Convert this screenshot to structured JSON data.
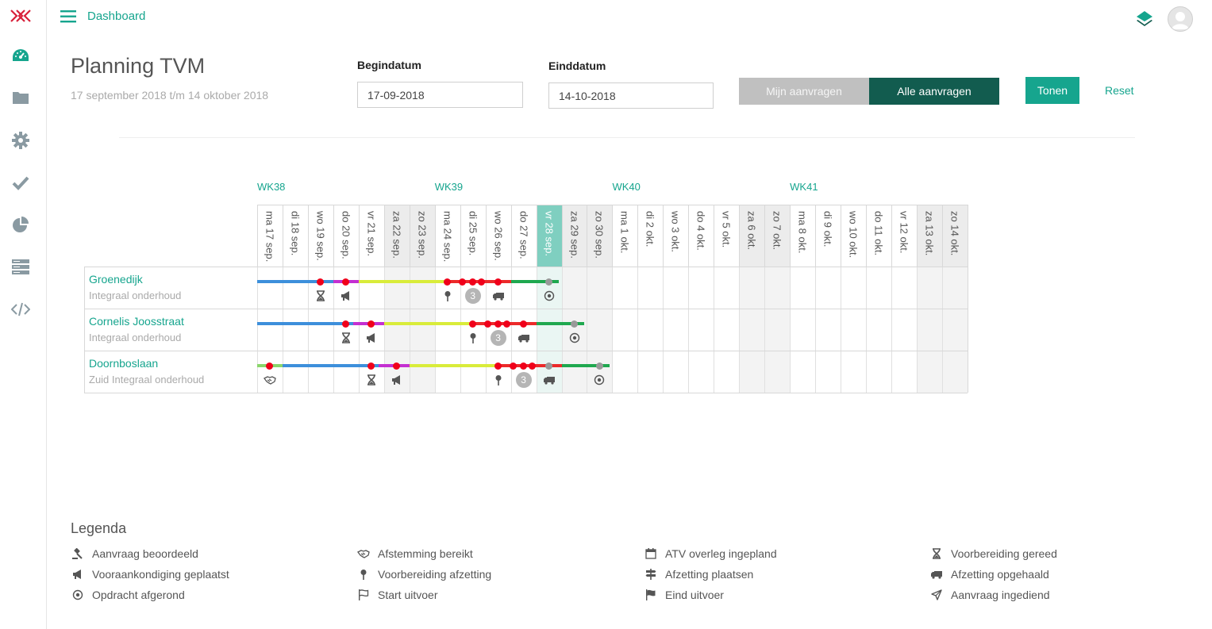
{
  "header": {
    "title": "Dashboard"
  },
  "sidebar": {
    "items": [
      "dashboard",
      "folder",
      "settings",
      "check",
      "pie-chart",
      "server",
      "code"
    ]
  },
  "page": {
    "title": "Planning TVM",
    "subtitle": "17 september 2018 t/m 14 oktober 2018"
  },
  "filters": {
    "start_label": "Begindatum",
    "start_value": "17-09-2018",
    "end_label": "Einddatum",
    "end_value": "14-10-2018",
    "mine_label": "Mijn aanvragen",
    "all_label": "Alle aanvragen",
    "show_label": "Tonen",
    "reset_label": "Reset"
  },
  "weeks": [
    {
      "label": "WK38",
      "start": 0
    },
    {
      "label": "WK39",
      "start": 7
    },
    {
      "label": "WK40",
      "start": 14
    },
    {
      "label": "WK41",
      "start": 21
    }
  ],
  "days": [
    {
      "label": "ma 17 sep.",
      "weekend": false
    },
    {
      "label": "di 18 sep.",
      "weekend": false
    },
    {
      "label": "wo 19 sep.",
      "weekend": false
    },
    {
      "label": "do 20 sep.",
      "weekend": false
    },
    {
      "label": "vr 21 sep.",
      "weekend": false
    },
    {
      "label": "za 22 sep.",
      "weekend": true
    },
    {
      "label": "zo 23 sep.",
      "weekend": true
    },
    {
      "label": "ma 24 sep.",
      "weekend": false
    },
    {
      "label": "di 25 sep.",
      "weekend": false
    },
    {
      "label": "wo 26 sep.",
      "weekend": false
    },
    {
      "label": "do 27 sep.",
      "weekend": false
    },
    {
      "label": "vr 28 sep.",
      "weekend": false,
      "today": true
    },
    {
      "label": "za 29 sep.",
      "weekend": true
    },
    {
      "label": "zo 30 sep.",
      "weekend": true
    },
    {
      "label": "ma 1 okt.",
      "weekend": false
    },
    {
      "label": "di 2 okt.",
      "weekend": false
    },
    {
      "label": "wo 3 okt.",
      "weekend": false
    },
    {
      "label": "do 4 okt.",
      "weekend": false
    },
    {
      "label": "vr 5 okt.",
      "weekend": false
    },
    {
      "label": "za 6 okt.",
      "weekend": true
    },
    {
      "label": "zo 7 okt.",
      "weekend": true
    },
    {
      "label": "ma 8 okt.",
      "weekend": false
    },
    {
      "label": "di 9 okt.",
      "weekend": false
    },
    {
      "label": "wo 10 okt.",
      "weekend": false
    },
    {
      "label": "do 11 okt.",
      "weekend": false
    },
    {
      "label": "vr 12 okt.",
      "weekend": false
    },
    {
      "label": "za 13 okt.",
      "weekend": true
    },
    {
      "label": "zo 14 okt.",
      "weekend": true
    }
  ],
  "phase_colors": {
    "blue": "#3d8fdb",
    "magenta": "#c42fd1",
    "yellow": "#d9ec3a",
    "red": "#ec2a2a",
    "green": "#1fa84f",
    "lightgreen": "#8ad66b",
    "dot_red": "#f0001a",
    "dot_grey": "#999999"
  },
  "projects": [
    {
      "name": "Groenedijk",
      "sub": "Integraal onderhoud",
      "segments": [
        {
          "from": 0,
          "to": 3.8,
          "color": "blue"
        },
        {
          "from": 3.8,
          "to": 4.0,
          "color": "red"
        },
        {
          "from": 3.0,
          "to": 4.0,
          "color": "magenta"
        },
        {
          "from": 4.0,
          "to": 7.6,
          "color": "yellow"
        },
        {
          "from": 7.6,
          "to": 10.0,
          "color": "red"
        },
        {
          "from": 10.0,
          "to": 11.9,
          "color": "green"
        }
      ],
      "dots": [
        {
          "day": 2.5,
          "color": "dot_red"
        },
        {
          "day": 3.5,
          "color": "dot_red"
        },
        {
          "day": 7.5,
          "color": "dot_red"
        },
        {
          "day": 8.1,
          "color": "dot_red"
        },
        {
          "day": 8.5,
          "color": "dot_red"
        },
        {
          "day": 8.85,
          "color": "dot_red"
        },
        {
          "day": 9.5,
          "color": "dot_red"
        },
        {
          "day": 11.5,
          "color": "dot_grey"
        }
      ],
      "icons": [
        {
          "day": 2,
          "icon": "hourglass"
        },
        {
          "day": 3,
          "icon": "megaphone"
        },
        {
          "day": 7,
          "icon": "pin"
        },
        {
          "day": 8,
          "icon": "count",
          "count": "3"
        },
        {
          "day": 9,
          "icon": "truck"
        },
        {
          "day": 11,
          "icon": "target"
        }
      ]
    },
    {
      "name": "Cornelis Joosstraat",
      "sub": "Integraal onderhoud",
      "segments": [
        {
          "from": 0,
          "to": 3.8,
          "color": "blue"
        },
        {
          "from": 3.8,
          "to": 5.0,
          "color": "magenta"
        },
        {
          "from": 5.0,
          "to": 8.6,
          "color": "yellow"
        },
        {
          "from": 8.6,
          "to": 11.0,
          "color": "red"
        },
        {
          "from": 11.0,
          "to": 12.9,
          "color": "green"
        }
      ],
      "dots": [
        {
          "day": 3.5,
          "color": "dot_red"
        },
        {
          "day": 4.5,
          "color": "dot_red"
        },
        {
          "day": 8.5,
          "color": "dot_red"
        },
        {
          "day": 9.1,
          "color": "dot_red"
        },
        {
          "day": 9.5,
          "color": "dot_red"
        },
        {
          "day": 9.85,
          "color": "dot_red"
        },
        {
          "day": 10.5,
          "color": "dot_red"
        },
        {
          "day": 12.5,
          "color": "dot_grey"
        }
      ],
      "icons": [
        {
          "day": 3,
          "icon": "hourglass"
        },
        {
          "day": 4,
          "icon": "megaphone"
        },
        {
          "day": 8,
          "icon": "pin"
        },
        {
          "day": 9,
          "icon": "count",
          "count": "3"
        },
        {
          "day": 10,
          "icon": "truck"
        },
        {
          "day": 12,
          "icon": "target"
        }
      ]
    },
    {
      "name": "Doornboslaan",
      "sub": "Zuid Integraal onderhoud",
      "segments": [
        {
          "from": 0,
          "to": 1.0,
          "color": "lightgreen"
        },
        {
          "from": 1.0,
          "to": 4.8,
          "color": "blue"
        },
        {
          "from": 4.8,
          "to": 6.0,
          "color": "magenta"
        },
        {
          "from": 6.0,
          "to": 9.6,
          "color": "yellow"
        },
        {
          "from": 9.6,
          "to": 12.0,
          "color": "red"
        },
        {
          "from": 12.0,
          "to": 13.9,
          "color": "green"
        }
      ],
      "dots": [
        {
          "day": 0.5,
          "color": "dot_red"
        },
        {
          "day": 4.5,
          "color": "dot_red"
        },
        {
          "day": 5.5,
          "color": "dot_red"
        },
        {
          "day": 9.5,
          "color": "dot_red"
        },
        {
          "day": 10.1,
          "color": "dot_red"
        },
        {
          "day": 10.5,
          "color": "dot_red"
        },
        {
          "day": 10.85,
          "color": "dot_red"
        },
        {
          "day": 11.5,
          "color": "dot_grey"
        },
        {
          "day": 13.5,
          "color": "dot_grey"
        }
      ],
      "icons": [
        {
          "day": 0,
          "icon": "handshake"
        },
        {
          "day": 4,
          "icon": "hourglass"
        },
        {
          "day": 5,
          "icon": "megaphone"
        },
        {
          "day": 9,
          "icon": "pin"
        },
        {
          "day": 10,
          "icon": "count",
          "count": "3"
        },
        {
          "day": 11,
          "icon": "truck"
        },
        {
          "day": 13,
          "icon": "target"
        }
      ]
    }
  ],
  "legend": {
    "title": "Legenda",
    "items": [
      {
        "icon": "gavel",
        "label": "Aanvraag beoordeeld"
      },
      {
        "icon": "handshake",
        "label": "Afstemming bereikt"
      },
      {
        "icon": "calendar",
        "label": "ATV overleg ingepland"
      },
      {
        "icon": "hourglass",
        "label": "Voorbereiding gereed"
      },
      {
        "icon": "megaphone",
        "label": "Vooraankondiging geplaatst"
      },
      {
        "icon": "pin",
        "label": "Voorbereiding afzetting"
      },
      {
        "icon": "signpost",
        "label": "Afzetting plaatsen"
      },
      {
        "icon": "truck",
        "label": "Afzetting opgehaald"
      },
      {
        "icon": "target",
        "label": "Opdracht afgerond"
      },
      {
        "icon": "flag-outline",
        "label": "Start uitvoer"
      },
      {
        "icon": "flag",
        "label": "Eind uitvoer"
      },
      {
        "icon": "send",
        "label": "Aanvraag ingediend"
      }
    ]
  }
}
